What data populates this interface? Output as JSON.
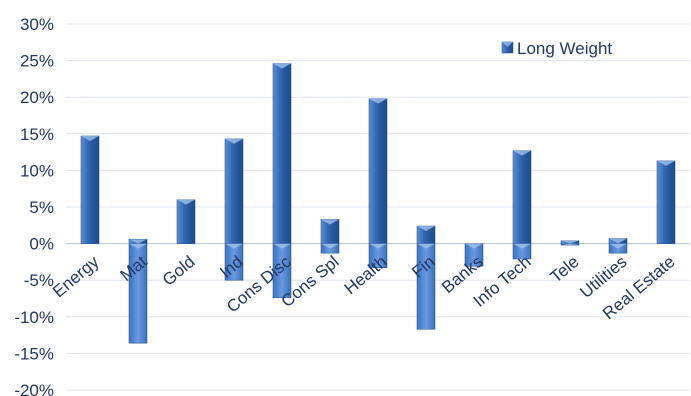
{
  "chart_data": {
    "type": "bar",
    "title": "",
    "xlabel": "",
    "ylabel": "",
    "ylim": [
      -20,
      30
    ],
    "yticks": [
      "30%",
      "25%",
      "20%",
      "15%",
      "10%",
      "5%",
      "0%",
      "-5%",
      "-10%",
      "-15%",
      "-20%"
    ],
    "ytick_values": [
      30,
      25,
      20,
      15,
      10,
      5,
      0,
      -5,
      -10,
      -15,
      -20
    ],
    "grid": true,
    "legend_position": "top-right",
    "categories": [
      "Energy",
      "Mat",
      "Gold",
      "Ind",
      "Cons Disc",
      "Cons Spl",
      "Health",
      "Fin",
      "Banks",
      "Info Tech",
      "Tele",
      "Utilities",
      "Real Estate"
    ],
    "series": [
      {
        "name": "Long Weight",
        "color": "#2e5c9e",
        "values": [
          14.7,
          0.6,
          6.0,
          14.3,
          24.6,
          3.3,
          19.8,
          2.4,
          0,
          12.7,
          0.4,
          0.7,
          11.3
        ]
      },
      {
        "name": "",
        "color": "#4f83cc",
        "values": [
          0,
          -13.6,
          0,
          -5.0,
          -7.4,
          -1.3,
          -3.3,
          -11.7,
          -3.1,
          -2.1,
          -0.2,
          -1.3,
          0
        ]
      }
    ]
  }
}
